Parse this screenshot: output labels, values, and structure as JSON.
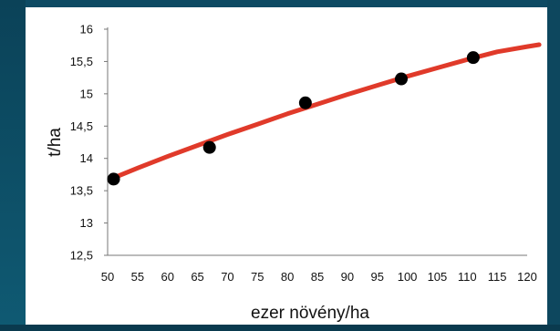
{
  "chart_data": {
    "type": "scatter",
    "title": "",
    "xlabel": "ezer növény/ha",
    "ylabel": "t/ha",
    "xlim": [
      50,
      120
    ],
    "ylim": [
      12.5,
      16
    ],
    "xticks": [
      "50",
      "55",
      "60",
      "65",
      "70",
      "75",
      "80",
      "85",
      "90",
      "95",
      "100",
      "105",
      "110",
      "115",
      "120"
    ],
    "yticks": [
      "12,5",
      "13",
      "13,5",
      "14",
      "14,5",
      "15",
      "15,5",
      "16"
    ],
    "grid": false,
    "legend": "none",
    "points": [
      {
        "x": 51,
        "y": 13.68
      },
      {
        "x": 67,
        "y": 14.17
      },
      {
        "x": 83,
        "y": 14.86
      },
      {
        "x": 99,
        "y": 15.23
      },
      {
        "x": 111,
        "y": 15.56
      }
    ],
    "trendline": {
      "x": [
        51,
        55,
        60,
        65,
        70,
        75,
        80,
        85,
        90,
        95,
        100,
        105,
        110,
        115,
        120,
        122
      ],
      "y": [
        13.7,
        13.85,
        14.03,
        14.2,
        14.37,
        14.53,
        14.69,
        14.84,
        14.99,
        15.13,
        15.27,
        15.4,
        15.53,
        15.65,
        15.73,
        15.76
      ]
    },
    "colors": {
      "points": "#000000",
      "trendline": "#e03a2a",
      "axis": "#777777"
    }
  }
}
